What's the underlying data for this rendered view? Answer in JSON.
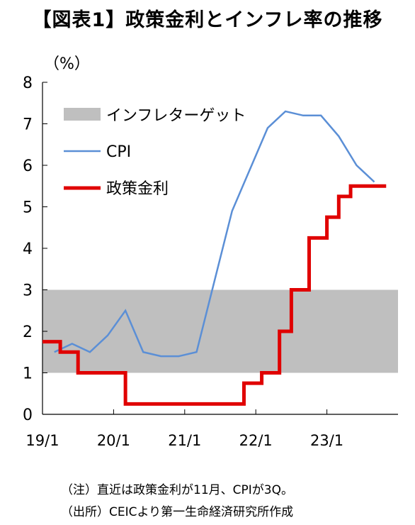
{
  "title": "【図表1】政策金利とインフレ率の推移",
  "notes": [
    "（注）直近は政策金利が11月、CPIが3Q。",
    "（出所）CEICより第一生命経済研究所作成"
  ],
  "chart_data": {
    "type": "line",
    "ylabel": "（%）",
    "ylim": [
      0,
      8
    ],
    "yticks": [
      "0",
      "1",
      "2",
      "3",
      "4",
      "5",
      "6",
      "7",
      "8"
    ],
    "xlim": [
      "2019-01",
      "2023-12"
    ],
    "xticks": [
      {
        "label": "19/1",
        "date": "2019-01"
      },
      {
        "label": "20/1",
        "date": "2020-01"
      },
      {
        "label": "21/1",
        "date": "2021-01"
      },
      {
        "label": "22/1",
        "date": "2022-01"
      },
      {
        "label": "23/1",
        "date": "2023-01"
      }
    ],
    "grid": false,
    "legend_position": "top-left",
    "target_band": {
      "name": "インフレターゲット",
      "range": [
        1,
        3
      ],
      "color": "#bfbfbf"
    },
    "series": [
      {
        "name": "CPI",
        "color": "#5b8fd6",
        "step": false,
        "points": [
          [
            "2019-03",
            1.5
          ],
          [
            "2019-06",
            1.7
          ],
          [
            "2019-09",
            1.5
          ],
          [
            "2019-12",
            1.9
          ],
          [
            "2020-03",
            2.5
          ],
          [
            "2020-06",
            1.5
          ],
          [
            "2020-09",
            1.4
          ],
          [
            "2020-12",
            1.4
          ],
          [
            "2021-03",
            1.5
          ],
          [
            "2021-06",
            3.2
          ],
          [
            "2021-09",
            4.9
          ],
          [
            "2021-12",
            5.9
          ],
          [
            "2022-03",
            6.9
          ],
          [
            "2022-06",
            7.3
          ],
          [
            "2022-09",
            7.2
          ],
          [
            "2022-12",
            7.2
          ],
          [
            "2023-03",
            6.7
          ],
          [
            "2023-06",
            6.0
          ],
          [
            "2023-09",
            5.6
          ]
        ]
      },
      {
        "name": "政策金利",
        "color": "#e00000",
        "step": true,
        "points": [
          [
            "2019-01",
            1.75
          ],
          [
            "2019-04",
            1.5
          ],
          [
            "2019-07",
            1.0
          ],
          [
            "2020-01",
            1.0
          ],
          [
            "2020-03",
            0.25
          ],
          [
            "2021-09",
            0.25
          ],
          [
            "2021-11",
            0.75
          ],
          [
            "2022-01",
            0.75
          ],
          [
            "2022-02",
            1.0
          ],
          [
            "2022-05",
            2.0
          ],
          [
            "2022-07",
            3.0
          ],
          [
            "2022-10",
            4.25
          ],
          [
            "2023-01",
            4.75
          ],
          [
            "2023-03",
            5.25
          ],
          [
            "2023-05",
            5.5
          ],
          [
            "2023-11",
            5.5
          ]
        ]
      }
    ]
  }
}
